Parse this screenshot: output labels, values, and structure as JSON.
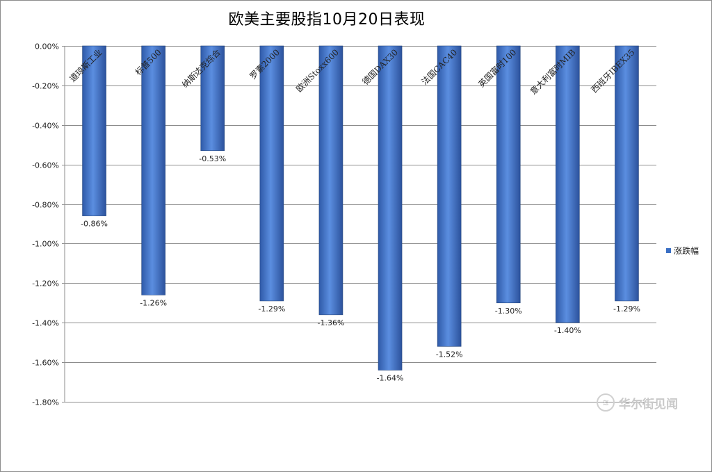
{
  "chart_data": {
    "type": "bar",
    "title": "欧美主要股指10月20日表现",
    "categories": [
      "道琼斯工业",
      "标普500",
      "纳斯达克综合",
      "罗素2000",
      "欧洲Stoxx600",
      "德国DAX30",
      "法国CAC40",
      "英国富时100",
      "意大利富时MIB",
      "西班牙IBEX35"
    ],
    "series": [
      {
        "name": "涨跌幅",
        "values": [
          -0.86,
          -1.26,
          -0.53,
          -1.29,
          -1.36,
          -1.64,
          -1.52,
          -1.3,
          -1.4,
          -1.29
        ]
      }
    ],
    "data_labels": [
      "-0.86%",
      "-1.26%",
      "-0.53%",
      "-1.29%",
      "-1.36%",
      "-1.64%",
      "-1.52%",
      "-1.30%",
      "-1.40%",
      "-1.29%"
    ],
    "yticks": [
      "0.00%",
      "-0.20%",
      "-0.40%",
      "-0.60%",
      "-0.80%",
      "-1.00%",
      "-1.20%",
      "-1.40%",
      "-1.60%",
      "-1.80%"
    ],
    "ylim": [
      -1.8,
      0
    ],
    "grid": true,
    "legend_position": "right",
    "bar_color": "#3a6fc4"
  },
  "legend": {
    "label": "涨跌幅"
  },
  "watermark": {
    "text": "华尔街见闻"
  }
}
